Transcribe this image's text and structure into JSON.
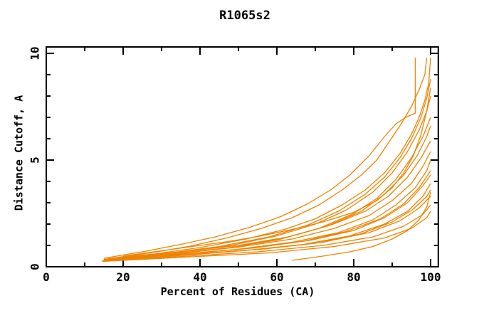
{
  "chart_data": {
    "type": "line",
    "title": "R1065s2",
    "xlabel": "Percent of Residues (CA)",
    "ylabel": "Distance Cutoff, A",
    "background_color": "#ffffff",
    "axis_color": "#000000",
    "line_color": "#ee8300",
    "legend": "none",
    "grid": "off",
    "x_axis": {
      "range": [
        0,
        102
      ],
      "major_ticks": [
        {
          "value": 0,
          "label": "0"
        },
        {
          "value": 20,
          "label": "20"
        },
        {
          "value": 40,
          "label": "40"
        },
        {
          "value": 60,
          "label": "60"
        },
        {
          "value": 80,
          "label": "80"
        },
        {
          "value": 100,
          "label": "100"
        }
      ],
      "minor_ticks": [
        10,
        30,
        50,
        70,
        90
      ]
    },
    "y_axis": {
      "range": [
        0,
        10.3
      ],
      "major_ticks": [
        {
          "value": 0,
          "label": "0"
        },
        {
          "value": 5,
          "label": "5"
        },
        {
          "value": 10,
          "label": "10"
        }
      ],
      "minor_ticks": [
        1,
        2,
        3,
        4,
        6,
        7,
        8,
        9
      ]
    },
    "series": [
      {
        "points": [
          [
            15,
            0.4
          ],
          [
            25,
            0.7
          ],
          [
            35,
            1.05
          ],
          [
            44,
            1.4
          ],
          [
            53,
            1.85
          ],
          [
            61,
            2.35
          ],
          [
            68,
            2.95
          ],
          [
            74,
            3.6
          ],
          [
            79,
            4.3
          ],
          [
            84,
            5.2
          ],
          [
            88,
            6.1
          ],
          [
            91,
            6.7
          ],
          [
            93.5,
            7.0
          ],
          [
            96,
            7.2
          ],
          [
            96,
            9.8
          ]
        ]
      },
      {
        "points": [
          [
            17,
            0.4
          ],
          [
            27,
            0.65
          ],
          [
            37,
            0.95
          ],
          [
            47,
            1.35
          ],
          [
            56,
            1.8
          ],
          [
            64,
            2.3
          ],
          [
            71,
            2.9
          ],
          [
            77,
            3.6
          ],
          [
            82,
            4.3
          ],
          [
            86,
            5.0
          ],
          [
            89,
            5.8
          ],
          [
            92,
            6.6
          ],
          [
            95,
            7.5
          ],
          [
            97,
            8.3
          ],
          [
            98.5,
            9.0
          ],
          [
            99,
            9.8
          ]
        ]
      },
      {
        "points": [
          [
            16,
            0.38
          ],
          [
            28,
            0.6
          ],
          [
            40,
            0.9
          ],
          [
            52,
            1.3
          ],
          [
            62,
            1.75
          ],
          [
            70,
            2.25
          ],
          [
            77,
            2.9
          ],
          [
            83,
            3.6
          ],
          [
            88,
            4.4
          ],
          [
            92,
            5.3
          ],
          [
            95,
            6.2
          ],
          [
            97,
            7.0
          ],
          [
            98.5,
            7.8
          ],
          [
            99.5,
            8.6
          ],
          [
            100,
            9.8
          ]
        ]
      },
      {
        "points": [
          [
            15,
            0.35
          ],
          [
            30,
            0.6
          ],
          [
            45,
            0.95
          ],
          [
            58,
            1.4
          ],
          [
            68,
            1.95
          ],
          [
            76,
            2.6
          ],
          [
            83,
            3.4
          ],
          [
            88,
            4.2
          ],
          [
            92,
            5.1
          ],
          [
            95,
            6.0
          ],
          [
            97.5,
            7.0
          ],
          [
            99,
            7.9
          ],
          [
            100,
            8.8
          ]
        ]
      },
      {
        "points": [
          [
            18,
            0.42
          ],
          [
            33,
            0.65
          ],
          [
            48,
            1.0
          ],
          [
            60,
            1.45
          ],
          [
            70,
            2.0
          ],
          [
            78,
            2.65
          ],
          [
            85,
            3.5
          ],
          [
            90,
            4.4
          ],
          [
            94,
            5.4
          ],
          [
            97,
            6.4
          ],
          [
            99,
            7.3
          ],
          [
            100,
            8.0
          ]
        ]
      },
      {
        "points": [
          [
            14.5,
            0.3
          ],
          [
            30,
            0.55
          ],
          [
            46,
            0.85
          ],
          [
            60,
            1.25
          ],
          [
            71,
            1.8
          ],
          [
            80,
            2.5
          ],
          [
            86,
            3.2
          ],
          [
            91,
            4.1
          ],
          [
            95,
            5.1
          ],
          [
            98,
            6.1
          ],
          [
            100,
            7.0
          ]
        ]
      },
      {
        "points": [
          [
            16,
            0.35
          ],
          [
            32,
            0.6
          ],
          [
            48,
            0.9
          ],
          [
            62,
            1.35
          ],
          [
            73,
            1.9
          ],
          [
            82,
            2.6
          ],
          [
            88,
            3.4
          ],
          [
            93,
            4.3
          ],
          [
            96.5,
            5.2
          ],
          [
            99,
            6.1
          ],
          [
            100,
            6.6
          ]
        ]
      },
      {
        "points": [
          [
            19,
            0.45
          ],
          [
            35,
            0.7
          ],
          [
            50,
            1.0
          ],
          [
            63,
            1.4
          ],
          [
            74,
            1.95
          ],
          [
            83,
            2.6
          ],
          [
            89,
            3.3
          ],
          [
            94,
            4.2
          ],
          [
            97.5,
            5.1
          ],
          [
            100,
            5.9
          ]
        ]
      },
      {
        "points": [
          [
            17,
            0.4
          ],
          [
            34,
            0.62
          ],
          [
            50,
            0.92
          ],
          [
            64,
            1.3
          ],
          [
            75,
            1.8
          ],
          [
            84,
            2.4
          ],
          [
            90,
            3.1
          ],
          [
            95,
            3.9
          ],
          [
            98,
            4.7
          ],
          [
            100,
            5.4
          ]
        ]
      },
      {
        "points": [
          [
            15,
            0.32
          ],
          [
            32,
            0.55
          ],
          [
            49,
            0.8
          ],
          [
            64,
            1.15
          ],
          [
            76,
            1.6
          ],
          [
            85,
            2.2
          ],
          [
            91,
            2.9
          ],
          [
            96,
            3.7
          ],
          [
            99,
            4.5
          ],
          [
            100,
            5.0
          ]
        ]
      },
      {
        "points": [
          [
            16,
            0.35
          ],
          [
            34,
            0.58
          ],
          [
            52,
            0.85
          ],
          [
            67,
            1.2
          ],
          [
            78,
            1.65
          ],
          [
            87,
            2.25
          ],
          [
            93,
            2.95
          ],
          [
            97,
            3.7
          ],
          [
            100,
            4.5
          ]
        ]
      },
      {
        "points": [
          [
            18,
            0.4
          ],
          [
            36,
            0.6
          ],
          [
            54,
            0.88
          ],
          [
            69,
            1.25
          ],
          [
            80,
            1.7
          ],
          [
            88,
            2.3
          ],
          [
            94,
            3.0
          ],
          [
            98,
            3.8
          ],
          [
            100,
            4.3
          ]
        ]
      },
      {
        "points": [
          [
            15,
            0.3
          ],
          [
            33,
            0.5
          ],
          [
            51,
            0.75
          ],
          [
            67,
            1.05
          ],
          [
            79,
            1.45
          ],
          [
            88,
            2.0
          ],
          [
            94,
            2.6
          ],
          [
            98,
            3.3
          ],
          [
            100,
            3.9
          ]
        ]
      },
      {
        "points": [
          [
            16,
            0.33
          ],
          [
            35,
            0.55
          ],
          [
            54,
            0.8
          ],
          [
            70,
            1.1
          ],
          [
            82,
            1.55
          ],
          [
            90,
            2.1
          ],
          [
            95.5,
            2.7
          ],
          [
            99,
            3.3
          ],
          [
            100,
            3.6
          ]
        ]
      },
      {
        "points": [
          [
            17,
            0.36
          ],
          [
            37,
            0.58
          ],
          [
            56,
            0.82
          ],
          [
            72,
            1.15
          ],
          [
            84,
            1.6
          ],
          [
            92,
            2.15
          ],
          [
            97,
            2.75
          ],
          [
            100,
            3.3
          ]
        ]
      },
      {
        "points": [
          [
            15,
            0.28
          ],
          [
            35,
            0.48
          ],
          [
            55,
            0.7
          ],
          [
            72,
            1.0
          ],
          [
            85,
            1.4
          ],
          [
            93,
            1.9
          ],
          [
            98,
            2.45
          ],
          [
            100,
            2.9
          ]
        ]
      },
      {
        "points": [
          [
            14.5,
            0.25
          ],
          [
            36,
            0.45
          ],
          [
            58,
            0.65
          ],
          [
            75,
            0.95
          ],
          [
            88,
            1.35
          ],
          [
            95,
            1.8
          ],
          [
            99,
            2.3
          ],
          [
            100,
            2.6
          ]
        ]
      },
      {
        "points": [
          [
            64,
            0.3
          ],
          [
            72,
            0.5
          ],
          [
            79,
            0.7
          ],
          [
            85,
            0.95
          ],
          [
            90,
            1.3
          ],
          [
            94,
            1.7
          ],
          [
            97,
            2.2
          ],
          [
            99,
            2.8
          ],
          [
            100,
            3.5
          ]
        ]
      },
      {
        "points": [
          [
            20,
            0.5
          ],
          [
            30,
            0.75
          ],
          [
            40,
            1.0
          ],
          [
            48,
            1.2
          ],
          [
            56,
            1.45
          ],
          [
            64,
            1.75
          ],
          [
            72,
            2.1
          ],
          [
            80,
            2.55
          ],
          [
            86,
            3.1
          ],
          [
            90,
            3.7
          ],
          [
            93,
            4.4
          ],
          [
            95.5,
            5.2
          ],
          [
            97.5,
            6.2
          ],
          [
            99,
            7.3
          ],
          [
            100,
            8.4
          ]
        ]
      }
    ]
  }
}
